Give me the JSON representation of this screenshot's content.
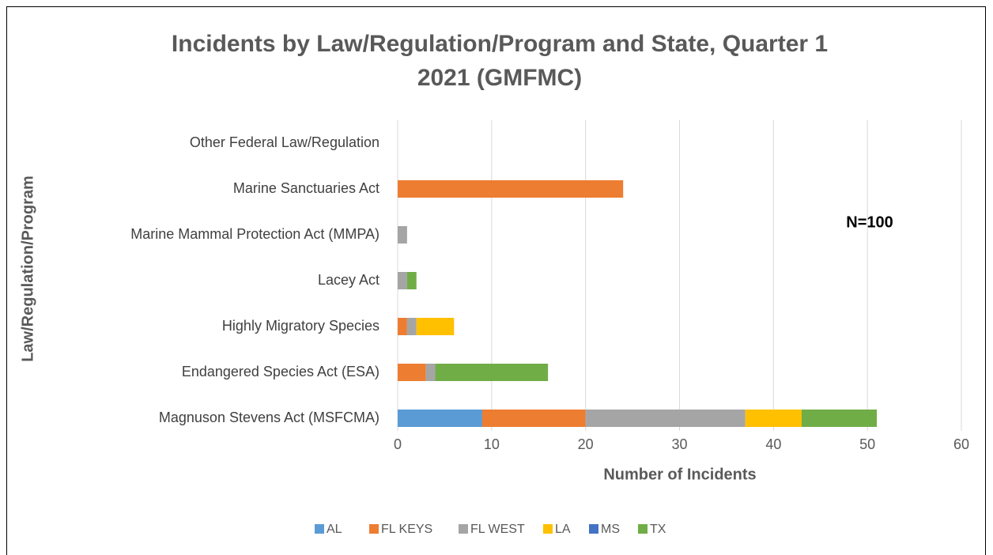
{
  "chart_data": {
    "type": "stacked-bar-horizontal",
    "title": [
      "Incidents by Law/Regulation/Program and State, Quarter 1",
      "2021 (GMFMC)"
    ],
    "x_label": "Number of Incidents",
    "y_label": "Law/Regulation/Program",
    "annotation": "N=100",
    "categories": [
      "Other Federal Law/Regulation",
      "Marine Sanctuaries Act",
      "Marine Mammal Protection Act (MMPA)",
      "Lacey Act",
      "Highly Migratory Species",
      "Endangered Species Act (ESA)",
      "Magnuson Stevens Act (MSFCMA)"
    ],
    "series": [
      {
        "name": "AL",
        "color": "#5b9bd5",
        "values": [
          0,
          0,
          0,
          0,
          0,
          0,
          9
        ]
      },
      {
        "name": "FL KEYS",
        "color": "#ed7d31",
        "values": [
          0,
          24,
          0,
          0,
          1,
          3,
          11
        ]
      },
      {
        "name": "FL WEST",
        "color": "#a5a5a5",
        "values": [
          0,
          0,
          1,
          1,
          1,
          1,
          17
        ]
      },
      {
        "name": "LA",
        "color": "#ffc000",
        "values": [
          0,
          0,
          0,
          0,
          4,
          0,
          6
        ]
      },
      {
        "name": "MS",
        "color": "#4472c4",
        "values": [
          0,
          0,
          0,
          0,
          0,
          0,
          0
        ]
      },
      {
        "name": "TX",
        "color": "#70ad47",
        "values": [
          0,
          0,
          0,
          1,
          0,
          12,
          8
        ]
      }
    ],
    "xlim": [
      0,
      60
    ],
    "xticks": [
      0,
      10,
      20,
      30,
      40,
      50,
      60
    ],
    "grid": true,
    "legend": "bottom"
  }
}
